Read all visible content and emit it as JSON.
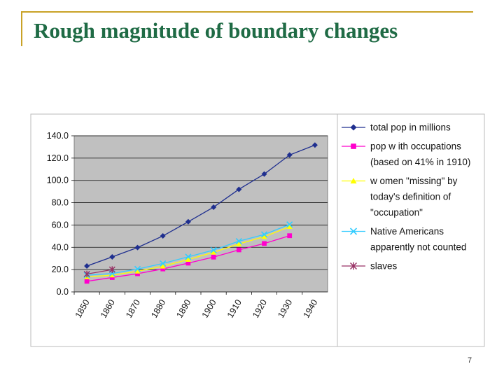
{
  "slide": {
    "title": "Rough magnitude of boundary changes",
    "page_number": "7"
  },
  "colors": {
    "title": "#1f6b45",
    "frame": "#c9a227",
    "plot_bg": "#c0c0c0"
  },
  "chart_data": {
    "type": "line",
    "title": "",
    "xlabel": "",
    "ylabel": "",
    "ylim": [
      0,
      140
    ],
    "yticks": [
      "0.0",
      "20.0",
      "40.0",
      "60.0",
      "80.0",
      "100.0",
      "120.0",
      "140.0"
    ],
    "categories": [
      "1850",
      "1860",
      "1870",
      "1880",
      "1890",
      "1900",
      "1910",
      "1920",
      "1930",
      "1940"
    ],
    "legend_position": "right",
    "series": [
      {
        "name": "total pop in millions",
        "legend_lines": [
          "total pop in millions"
        ],
        "color": "#1f2f8f",
        "marker": "diamond",
        "values": [
          23.2,
          31.4,
          39.8,
          50.2,
          62.9,
          76.0,
          92.0,
          105.7,
          122.8,
          131.7
        ]
      },
      {
        "name": "pop with occupations (based on 41% in 1910)",
        "legend_lines": [
          "pop w ith occupations",
          "(based on 41% in 1910)"
        ],
        "color": "#ff00cc",
        "marker": "square",
        "values": [
          9.5,
          12.9,
          16.3,
          20.6,
          25.8,
          31.2,
          37.7,
          43.4,
          50.4,
          null
        ]
      },
      {
        "name": "women \"missing\" by today's definition of \"occupation\"",
        "legend_lines": [
          "w omen \"missing\" by",
          "today's definition of",
          "\"occupation\""
        ],
        "color": "#ffff00",
        "marker": "triangle",
        "values": [
          13.5,
          15.0,
          18.5,
          23.0,
          29.0,
          35.5,
          43.0,
          49.5,
          58.5,
          null
        ]
      },
      {
        "name": "Native Americans apparently not counted",
        "legend_lines": [
          "Native Americans",
          "apparently not counted"
        ],
        "color": "#33ccff",
        "marker": "x",
        "values": [
          15.0,
          16.5,
          20.5,
          25.5,
          31.5,
          37.5,
          45.5,
          51.5,
          60.5,
          null
        ]
      },
      {
        "name": "slaves",
        "legend_lines": [
          "slaves"
        ],
        "color": "#993366",
        "marker": "star",
        "values": [
          16.0,
          20.0,
          null,
          null,
          null,
          null,
          null,
          null,
          null,
          null
        ]
      }
    ]
  }
}
